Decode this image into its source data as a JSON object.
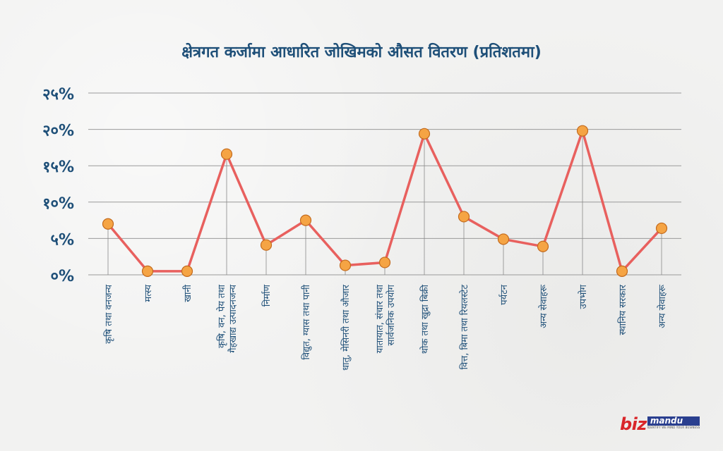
{
  "chart_data": {
    "type": "line",
    "title": "क्षेत्रगत कर्जामा आधारित जोखिमको औसत वितरण (प्रतिशतमा)",
    "categories": [
      [
        "कृषि तथा वनजन्य"
      ],
      [
        "मत्स्य"
      ],
      [
        "खानी"
      ],
      [
        "कृषि, वन, पेय तथा",
        "गैहखाद्य उत्पादनजन्य"
      ],
      [
        "निर्माण"
      ],
      [
        "विद्युत, ग्यास तथा पानी"
      ],
      [
        "धातु, मेसिनरी तथा औजार"
      ],
      [
        "यातायात, संचार तथा",
        "सार्वजनिक उपयोग"
      ],
      [
        "थोक तथा खुद्रा बिक्री"
      ],
      [
        "वित्त, बिमा तथा रियलस्टेट"
      ],
      [
        "पर्यटन"
      ],
      [
        "अन्य सेवाहरू"
      ],
      [
        "उपभोग"
      ],
      [
        "स्थानिय सरकार"
      ],
      [
        "अन्य सेवाहरू"
      ]
    ],
    "values": [
      7.0,
      0.5,
      0.5,
      16.6,
      4.1,
      7.5,
      1.3,
      1.7,
      19.4,
      8.0,
      4.9,
      3.9,
      19.8,
      0.5,
      6.4
    ],
    "ylim": [
      0,
      25
    ],
    "yticks": [
      "०%",
      "५%",
      "१०%",
      "१५%",
      "२०%",
      "२५%"
    ],
    "grid": true,
    "colors": {
      "line": "#e8605e",
      "marker_fill": "#f5a444",
      "marker_stroke": "#c36a1d",
      "grid": "#9a9a9a",
      "axis_text": "#1e4f78",
      "category_text": "#1e4f78"
    }
  },
  "logo": {
    "biz": "biz",
    "mandu": "mandu",
    "tagline": "IDENTIFY WE MIND YOUR BUSINESS"
  }
}
